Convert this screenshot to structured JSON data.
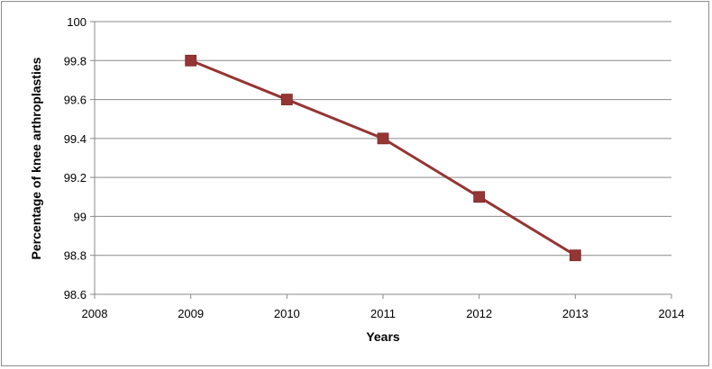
{
  "chart_data": {
    "type": "line",
    "title": "",
    "xlabel": "Years",
    "ylabel": "Percentage of knee arthroplasties",
    "xlim": [
      2008,
      2014
    ],
    "ylim": [
      98.6,
      100
    ],
    "x_ticks": [
      2008,
      2009,
      2010,
      2011,
      2012,
      2013,
      2014
    ],
    "y_ticks": [
      "98.6",
      "98.8",
      "99",
      "99.2",
      "99.4",
      "99.6",
      "99.8",
      "100"
    ],
    "grid": "horizontal",
    "legend": "none",
    "series": [
      {
        "x": [
          2009,
          2010,
          2011,
          2012,
          2013
        ],
        "values": [
          99.8,
          99.6,
          99.4,
          99.1,
          98.8
        ],
        "color": "#943634",
        "marker": "square"
      }
    ]
  }
}
